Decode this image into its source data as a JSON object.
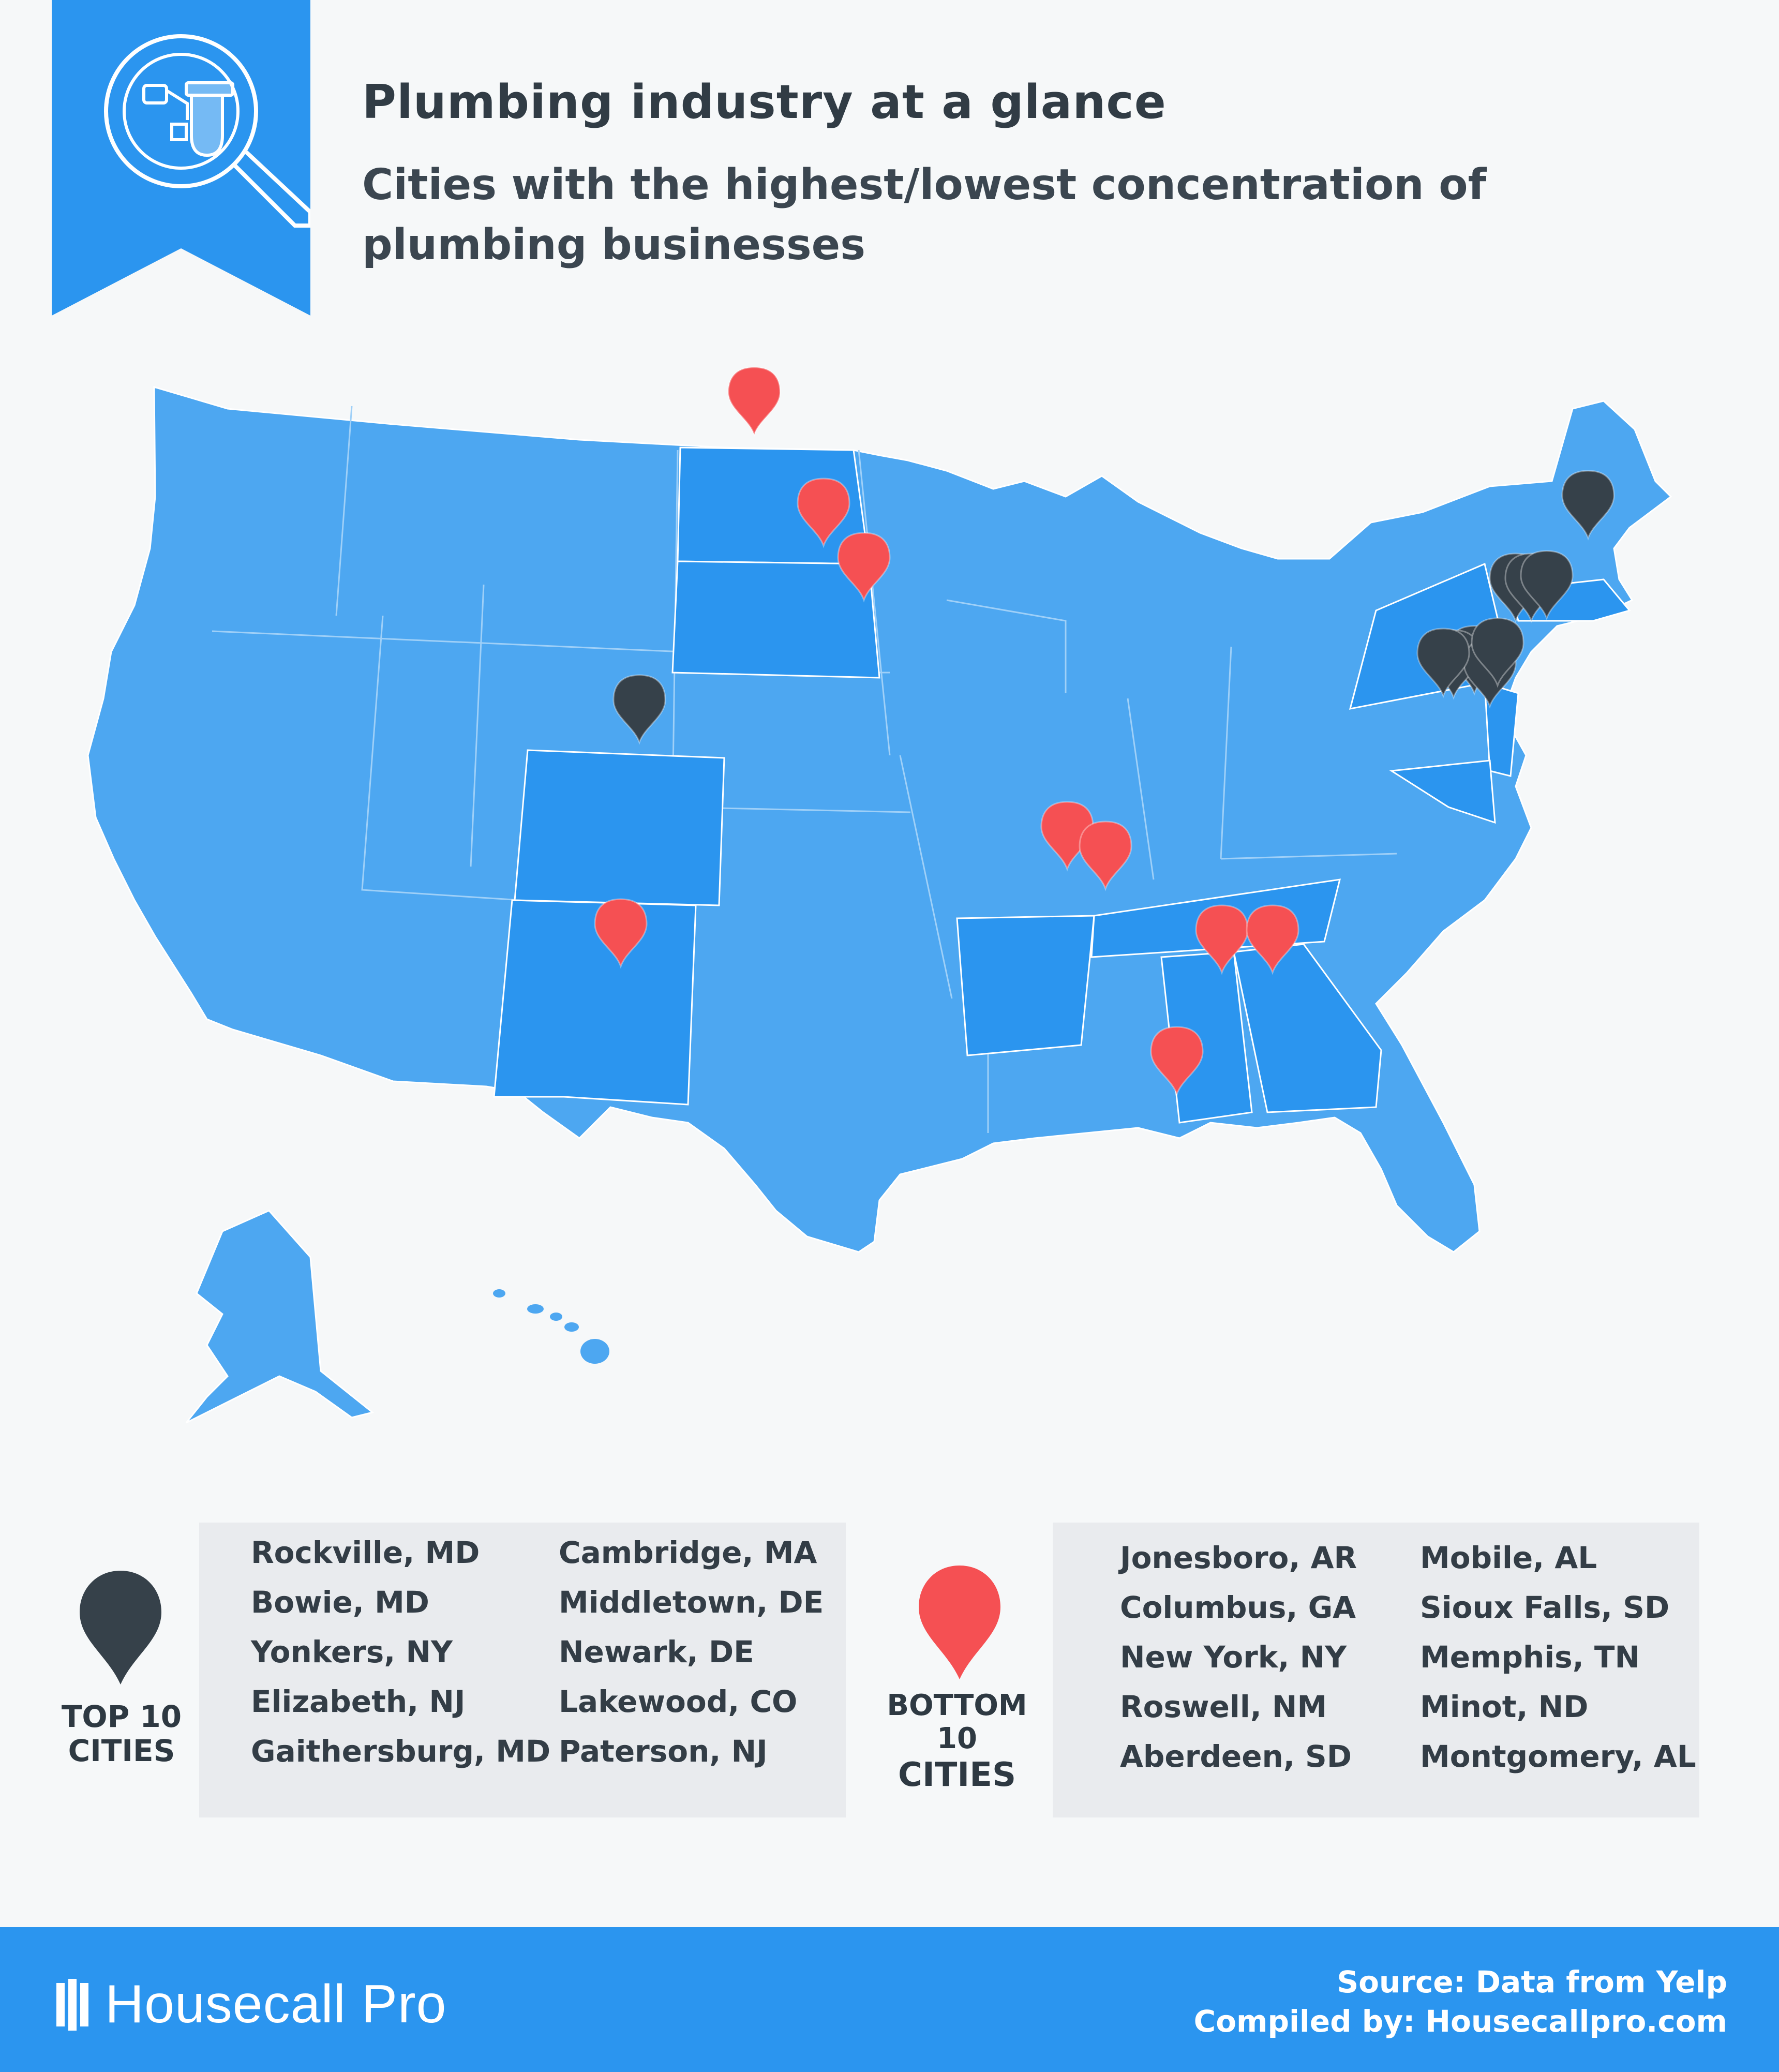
{
  "header": {
    "title": "Plumbing industry at a glance",
    "subtitle": "Cities with the highest/lowest concentration of plumbing businesses",
    "badge_icon": "plumbing-pipe-magnifier-icon"
  },
  "colors": {
    "ribbon": "#2b95ef",
    "state_default": "#4da7f1",
    "state_highlight": "#2b95ef",
    "pin_top": "#36414a",
    "pin_bottom": "#f55053",
    "list_background": "#e9ebee"
  },
  "map": {
    "region": "United States",
    "highlighted_states": [
      "ND",
      "SD",
      "CO",
      "NM",
      "AR",
      "TN",
      "AL",
      "GA",
      "NY",
      "NJ",
      "MD",
      "DE",
      "MA"
    ]
  },
  "legend": {
    "top": {
      "icon": "dark-map-pin-icon",
      "caption_line1": "TOP 10",
      "caption_line2": "CITIES",
      "cities": [
        "Rockville, MD",
        "Bowie, MD",
        "Yonkers, NY",
        "Elizabeth, NJ",
        "Gaithersburg, MD",
        "Cambridge, MA",
        "Middletown, DE",
        "Newark, DE",
        "Lakewood, CO",
        "Paterson, NJ"
      ]
    },
    "bottom": {
      "icon": "red-map-pin-icon",
      "caption_line1": "BOTTOM",
      "caption_line2": "10",
      "caption_line3": "CITIES",
      "cities": [
        "Jonesboro, AR",
        "Columbus, GA",
        "New York, NY",
        "Roswell, NM",
        "Aberdeen, SD",
        "Mobile, AL",
        "Sioux Falls, SD",
        "Memphis, TN",
        "Minot, ND",
        "Montgomery, AL"
      ]
    }
  },
  "footer": {
    "brand": "Housecall Pro",
    "brand_icon": "housecall-pro-logo-icon",
    "source": "Source: Data from Yelp",
    "compiled": "Compiled by: Housecallpro.com"
  }
}
